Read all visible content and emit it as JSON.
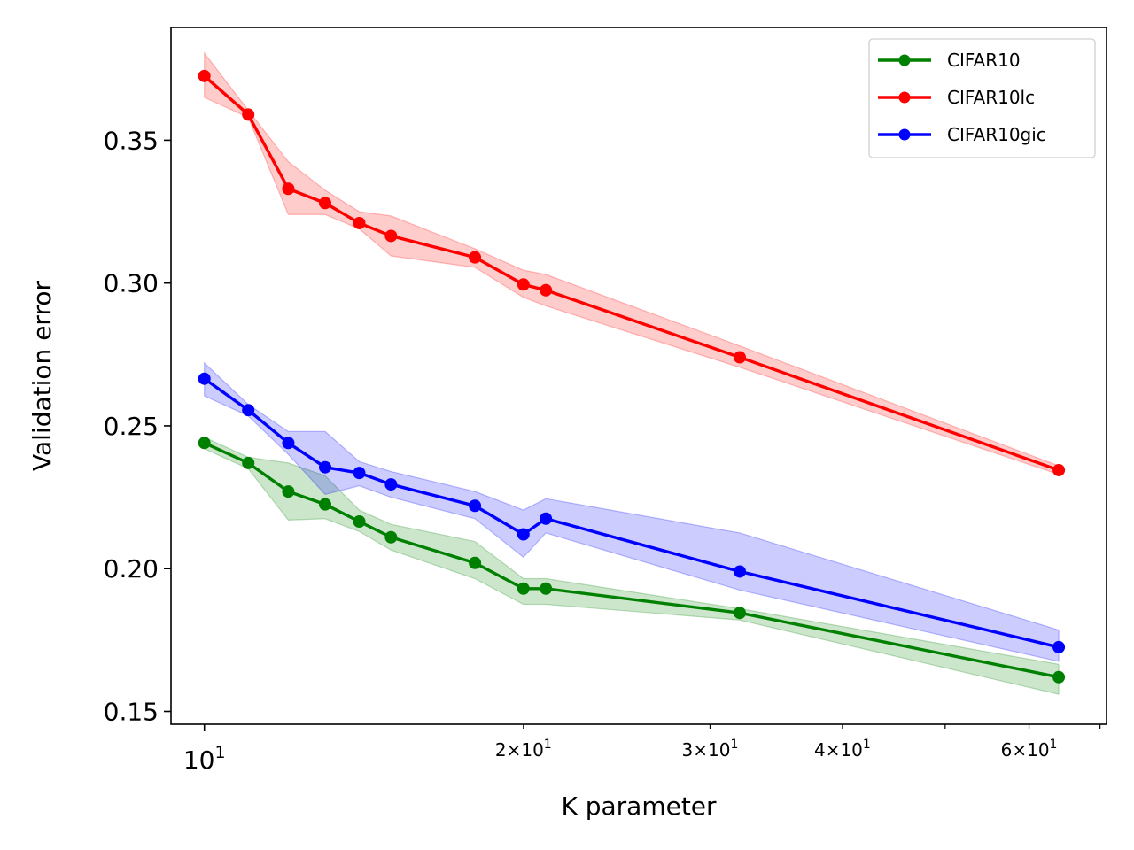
{
  "chart_data": {
    "type": "line",
    "xlabel": "K parameter",
    "ylabel": "Validation error",
    "x_scale": "log",
    "xlim": [
      9.3,
      71
    ],
    "ylim": [
      0.1455,
      0.3895
    ],
    "x_major_ticks": [
      {
        "value": 10,
        "label": "10",
        "exp": "1"
      }
    ],
    "x_minor_ticks": [
      {
        "value": 20,
        "label": "2×10",
        "exp": "1"
      },
      {
        "value": 30,
        "label": "3×10",
        "exp": "1"
      },
      {
        "value": 40,
        "label": "4×10",
        "exp": "1"
      },
      {
        "value": 50,
        "label": "",
        "exp": ""
      },
      {
        "value": 60,
        "label": "6×10",
        "exp": "1"
      },
      {
        "value": 70,
        "label": "",
        "exp": ""
      }
    ],
    "y_ticks": [
      {
        "value": 0.15,
        "label": "0.15"
      },
      {
        "value": 0.2,
        "label": "0.20"
      },
      {
        "value": 0.25,
        "label": "0.25"
      },
      {
        "value": 0.3,
        "label": "0.30"
      },
      {
        "value": 0.35,
        "label": "0.35"
      }
    ],
    "x": [
      10,
      11,
      12,
      13,
      14,
      15,
      18,
      20,
      21,
      32,
      64
    ],
    "series": [
      {
        "name": "CIFAR10",
        "color": "#008000",
        "values": [
          0.244,
          0.237,
          0.227,
          0.2225,
          0.2165,
          0.211,
          0.202,
          0.193,
          0.193,
          0.1845,
          0.162
        ],
        "lower": [
          0.242,
          0.235,
          0.217,
          0.2175,
          0.213,
          0.2065,
          0.1965,
          0.1875,
          0.1875,
          0.182,
          0.156
        ],
        "upper": [
          0.246,
          0.239,
          0.237,
          0.2325,
          0.2205,
          0.2155,
          0.2095,
          0.1965,
          0.1965,
          0.186,
          0.1665
        ]
      },
      {
        "name": "CIFAR10lc",
        "color": "#ff0000",
        "values": [
          0.3725,
          0.359,
          0.333,
          0.328,
          0.321,
          0.3165,
          0.309,
          0.2995,
          0.2975,
          0.274,
          0.2345
        ],
        "lower": [
          0.365,
          0.358,
          0.324,
          0.324,
          0.319,
          0.3095,
          0.3055,
          0.295,
          0.292,
          0.2705,
          0.233
        ],
        "upper": [
          0.3805,
          0.3605,
          0.3425,
          0.3325,
          0.325,
          0.3235,
          0.312,
          0.3045,
          0.303,
          0.278,
          0.236
        ]
      },
      {
        "name": "CIFAR10gic",
        "color": "#0000ff",
        "values": [
          0.2665,
          0.2555,
          0.244,
          0.2355,
          0.2335,
          0.2295,
          0.222,
          0.212,
          0.2175,
          0.199,
          0.1725
        ],
        "lower": [
          0.2605,
          0.2535,
          0.24,
          0.226,
          0.229,
          0.225,
          0.2175,
          0.204,
          0.2125,
          0.1925,
          0.1675
        ],
        "upper": [
          0.272,
          0.2575,
          0.248,
          0.248,
          0.2375,
          0.234,
          0.227,
          0.2205,
          0.2245,
          0.2125,
          0.1785
        ]
      }
    ],
    "legend": {
      "position": "upper-right"
    },
    "grid": false
  }
}
